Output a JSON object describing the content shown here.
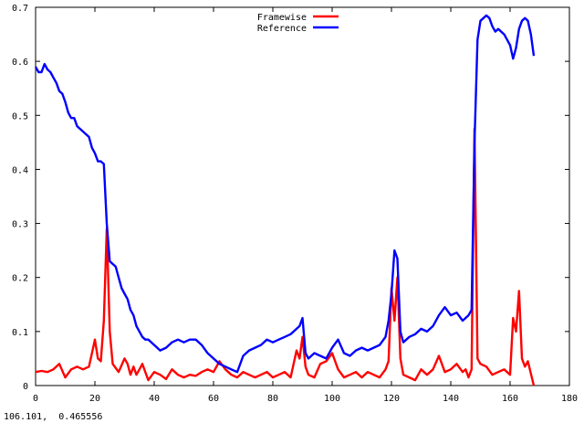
{
  "status": {
    "coordinates": "106.101,  0.465556"
  },
  "chart_data": {
    "type": "line",
    "title": "",
    "xlabel": "",
    "ylabel": "",
    "xlim": [
      0,
      180
    ],
    "ylim": [
      0,
      0.7
    ],
    "xticks": [
      0,
      20,
      40,
      60,
      80,
      100,
      120,
      140,
      160,
      180
    ],
    "yticks": [
      0,
      0.1,
      0.2,
      0.3,
      0.4,
      0.5,
      0.6,
      0.7
    ],
    "grid": false,
    "legend_position": "top-center",
    "series": [
      {
        "name": "Framewise",
        "color": "#ff0000",
        "x": [
          0,
          2,
          4,
          6,
          8,
          10,
          12,
          14,
          16,
          18,
          19,
          20,
          21,
          22,
          23,
          24,
          25,
          26,
          28,
          30,
          31,
          32,
          33,
          34,
          35,
          36,
          38,
          40,
          42,
          44,
          46,
          48,
          50,
          52,
          54,
          56,
          58,
          60,
          62,
          64,
          66,
          68,
          70,
          72,
          74,
          76,
          78,
          80,
          82,
          84,
          86,
          88,
          89,
          90,
          91,
          92,
          94,
          96,
          98,
          100,
          102,
          104,
          106,
          108,
          110,
          112,
          114,
          116,
          118,
          119,
          120,
          121,
          122,
          123,
          124,
          126,
          128,
          130,
          132,
          134,
          136,
          138,
          140,
          142,
          144,
          145,
          146,
          147,
          148,
          149,
          150,
          152,
          154,
          156,
          158,
          160,
          161,
          162,
          163,
          164,
          165,
          166,
          168
        ],
        "y": [
          0.025,
          0.027,
          0.025,
          0.03,
          0.04,
          0.015,
          0.03,
          0.035,
          0.03,
          0.035,
          0.06,
          0.085,
          0.05,
          0.045,
          0.12,
          0.29,
          0.1,
          0.04,
          0.025,
          0.05,
          0.04,
          0.02,
          0.035,
          0.02,
          0.03,
          0.04,
          0.01,
          0.025,
          0.02,
          0.012,
          0.03,
          0.02,
          0.015,
          0.02,
          0.018,
          0.025,
          0.03,
          0.025,
          0.045,
          0.03,
          0.02,
          0.015,
          0.025,
          0.02,
          0.015,
          0.02,
          0.025,
          0.015,
          0.02,
          0.025,
          0.015,
          0.065,
          0.05,
          0.09,
          0.035,
          0.02,
          0.015,
          0.04,
          0.045,
          0.06,
          0.03,
          0.015,
          0.02,
          0.025,
          0.015,
          0.025,
          0.02,
          0.015,
          0.03,
          0.045,
          0.18,
          0.12,
          0.2,
          0.05,
          0.02,
          0.015,
          0.01,
          0.03,
          0.02,
          0.03,
          0.055,
          0.025,
          0.03,
          0.04,
          0.025,
          0.03,
          0.015,
          0.03,
          0.475,
          0.05,
          0.04,
          0.035,
          0.02,
          0.025,
          0.03,
          0.02,
          0.125,
          0.1,
          0.175,
          0.05,
          0.035,
          0.045,
          0.0
        ]
      },
      {
        "name": "Reference",
        "color": "#0000ff",
        "x": [
          0,
          1,
          2,
          3,
          4,
          5,
          6,
          7,
          8,
          9,
          10,
          11,
          12,
          13,
          14,
          15,
          16,
          17,
          18,
          19,
          20,
          21,
          22,
          23,
          24,
          25,
          26,
          27,
          28,
          29,
          30,
          31,
          32,
          33,
          34,
          35,
          36,
          37,
          38,
          40,
          42,
          44,
          46,
          48,
          50,
          52,
          54,
          56,
          58,
          60,
          62,
          64,
          66,
          68,
          70,
          72,
          74,
          76,
          78,
          80,
          82,
          84,
          86,
          88,
          89,
          90,
          91,
          92,
          94,
          96,
          98,
          100,
          102,
          104,
          106,
          108,
          110,
          112,
          114,
          116,
          118,
          119,
          120,
          121,
          122,
          123,
          124,
          126,
          128,
          130,
          132,
          134,
          136,
          138,
          140,
          142,
          144,
          146,
          147,
          148,
          149,
          150,
          151,
          152,
          153,
          154,
          155,
          156,
          158,
          160,
          161,
          162,
          163,
          164,
          165,
          166,
          167,
          168
        ],
        "y": [
          0.59,
          0.58,
          0.58,
          0.595,
          0.585,
          0.58,
          0.57,
          0.56,
          0.545,
          0.54,
          0.525,
          0.505,
          0.495,
          0.495,
          0.48,
          0.475,
          0.47,
          0.465,
          0.46,
          0.44,
          0.43,
          0.415,
          0.415,
          0.41,
          0.3,
          0.23,
          0.225,
          0.22,
          0.2,
          0.18,
          0.17,
          0.16,
          0.14,
          0.13,
          0.11,
          0.1,
          0.09,
          0.085,
          0.085,
          0.075,
          0.065,
          0.07,
          0.08,
          0.085,
          0.08,
          0.085,
          0.085,
          0.075,
          0.06,
          0.05,
          0.04,
          0.035,
          0.03,
          0.025,
          0.055,
          0.065,
          0.07,
          0.075,
          0.085,
          0.08,
          0.085,
          0.09,
          0.095,
          0.105,
          0.11,
          0.125,
          0.06,
          0.05,
          0.06,
          0.055,
          0.05,
          0.07,
          0.085,
          0.06,
          0.055,
          0.065,
          0.07,
          0.065,
          0.07,
          0.075,
          0.09,
          0.12,
          0.17,
          0.25,
          0.235,
          0.1,
          0.08,
          0.09,
          0.095,
          0.105,
          0.1,
          0.11,
          0.13,
          0.145,
          0.13,
          0.135,
          0.12,
          0.13,
          0.14,
          0.45,
          0.64,
          0.675,
          0.68,
          0.685,
          0.68,
          0.665,
          0.655,
          0.66,
          0.65,
          0.63,
          0.605,
          0.625,
          0.66,
          0.675,
          0.68,
          0.675,
          0.65,
          0.61
        ]
      }
    ]
  }
}
